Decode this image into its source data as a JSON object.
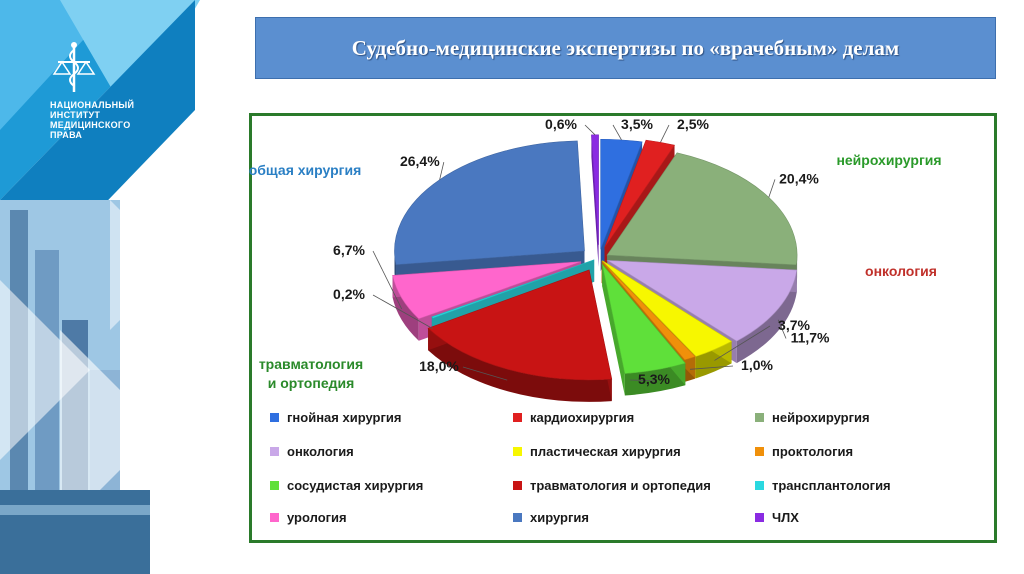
{
  "slide": {
    "title": "Судебно-медицинские экспертизы по «врачебным» делам",
    "logo_text": [
      "НАЦИОНАЛЬНЫЙ",
      "ИНСТИТУТ",
      "МЕДИЦИНСКОГО",
      "ПРАВА"
    ]
  },
  "chart_data": {
    "type": "pie",
    "title": "",
    "slices": [
      {
        "name": "гнойная хирургия",
        "value": 3.5,
        "label": "3,5%",
        "color": "#2f6fe0"
      },
      {
        "name": "кардиохирургия",
        "value": 2.5,
        "label": "2,5%",
        "color": "#e02020"
      },
      {
        "name": "нейрохирургия",
        "value": 20.4,
        "label": "20,4%",
        "color": "#8ab07a"
      },
      {
        "name": "онкология",
        "value": 11.7,
        "label": "11,7%",
        "color": "#c9a8e8"
      },
      {
        "name": "пластическая хирургия",
        "value": 3.7,
        "label": "3,7%",
        "color": "#f7f700"
      },
      {
        "name": "проктология",
        "value": 1.0,
        "label": "1,0%",
        "color": "#f0900a"
      },
      {
        "name": "сосудистая хирургия",
        "value": 5.3,
        "label": "5,3%",
        "color": "#5fe03a"
      },
      {
        "name": "травматология и ортопедия",
        "value": 18.0,
        "label": "18,0%",
        "color": "#c81414"
      },
      {
        "name": "трансплантология",
        "value": 0.2,
        "label": "0,2%",
        "color": "#2ad8e0"
      },
      {
        "name": "урология",
        "value": 6.7,
        "label": "6,7%",
        "color": "#ff66cc"
      },
      {
        "name": "хирургия",
        "value": 26.4,
        "label": "26,4%",
        "color": "#4a78c0"
      },
      {
        "name": "ЧЛХ",
        "value": 0.6,
        "label": "0,6%",
        "color": "#8a2be2"
      }
    ],
    "annotations": [
      {
        "text": "общая  хирургия",
        "color": "#2a7fc4"
      },
      {
        "text": "нейрохирургия",
        "color": "#2a9a2a"
      },
      {
        "text": "онкология",
        "color": "#c0302a"
      },
      {
        "text": "травматология",
        "color": "#2a8a2a"
      },
      {
        "text": "и ортопедия",
        "color": "#2a8a2a"
      }
    ],
    "legend": {
      "position": "bottom",
      "columns": 3
    }
  }
}
